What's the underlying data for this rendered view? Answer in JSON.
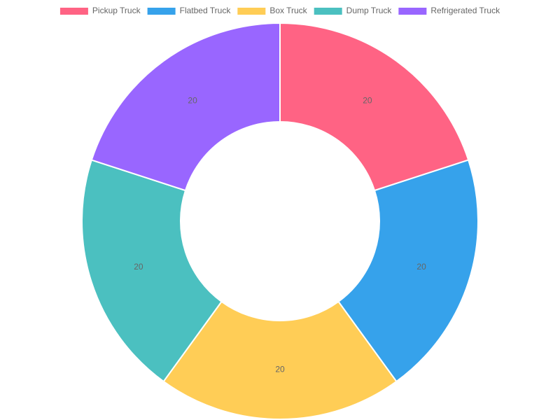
{
  "chart_data": {
    "type": "doughnut",
    "categories": [
      "Pickup Truck",
      "Flatbed Truck",
      "Box Truck",
      "Dump Truck",
      "Refrigerated Truck"
    ],
    "values": [
      20,
      20,
      20,
      20,
      20
    ],
    "colors": [
      "#ff6384",
      "#36a2eb",
      "#ffcd56",
      "#4bc0c0",
      "#9966ff"
    ],
    "legend": "top"
  }
}
